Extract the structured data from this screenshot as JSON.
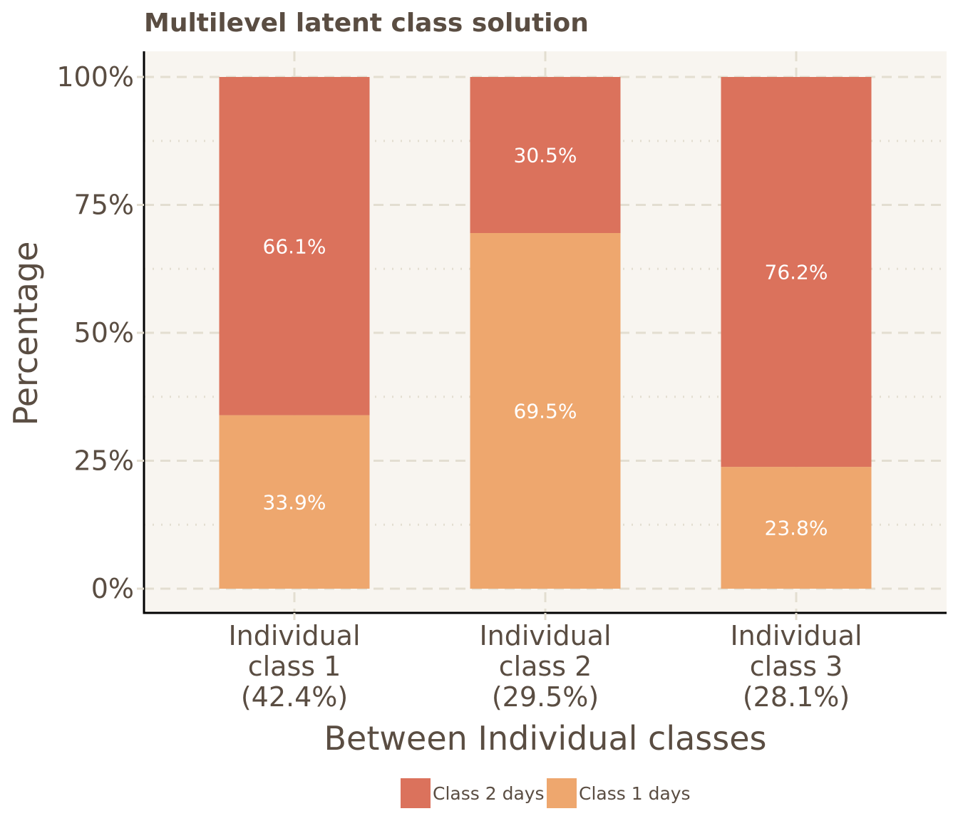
{
  "chart_data": {
    "type": "bar",
    "stacked": true,
    "title": "Multilevel latent class solution",
    "xlabel": "Between Individual classes",
    "ylabel": "Percentage",
    "ylim": [
      0,
      100
    ],
    "y_ticks": [
      0,
      25,
      50,
      75,
      100
    ],
    "y_tick_labels": [
      "0%",
      "25%",
      "50%",
      "75%",
      "100%"
    ],
    "categories": [
      [
        "Individual",
        "class 1",
        "(42.4%)"
      ],
      [
        "Individual",
        "class 2",
        "(29.5%)"
      ],
      [
        "Individual",
        "class 3",
        "(28.1%)"
      ]
    ],
    "series": [
      {
        "name": "Class 1 days",
        "color": "#eea76e",
        "values": [
          33.9,
          69.5,
          23.8
        ],
        "labels": [
          "33.9%",
          "69.5%",
          "23.8%"
        ]
      },
      {
        "name": "Class 2 days",
        "color": "#db725c",
        "values": [
          66.1,
          30.5,
          76.2
        ],
        "labels": [
          "66.1%",
          "30.5%",
          "76.2%"
        ]
      }
    ],
    "legend": {
      "position": "bottom",
      "items": [
        {
          "label": "Class 2 days",
          "color": "#db725c"
        },
        {
          "label": "Class 1 days",
          "color": "#eea76e"
        }
      ]
    },
    "grid": true,
    "panel_color": "#f8f5f0",
    "grid_color": "#e3ded1",
    "text_color": "#5a4d42"
  }
}
